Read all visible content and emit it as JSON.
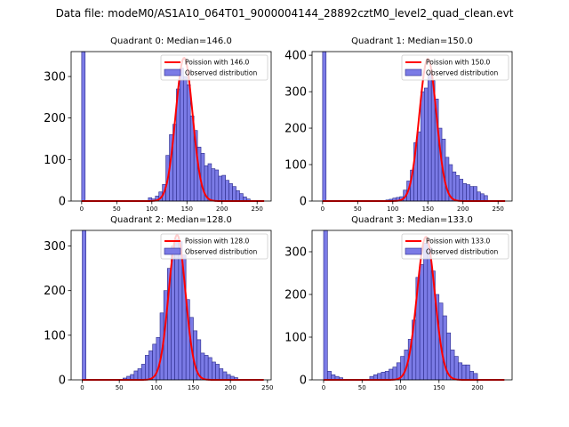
{
  "figure_title": "Data file: modeM0/AS1A10_064T01_9000004144_28892cztM0_level2_quad_clean.evt",
  "colors": {
    "bars_fill": "#7b7be6",
    "bars_edge": "#2a2a8a",
    "poisson_line": "#ff0000"
  },
  "chart_data": [
    {
      "type": "bar",
      "title": "Quadrant 0: Median=146.0",
      "median": 146.0,
      "xlim": [
        -15,
        270
      ],
      "ylim": [
        0,
        360
      ],
      "xticks": [
        0,
        50,
        100,
        150,
        200,
        250
      ],
      "yticks": [
        0,
        100,
        200,
        300
      ],
      "bin_width": 5,
      "legend": [
        "Poission with 146.0",
        "Observed distribution"
      ],
      "poisson_peak": 345,
      "bins": [
        [
          0,
          5,
          360
        ],
        [
          95,
          100,
          8
        ],
        [
          100,
          105,
          5
        ],
        [
          105,
          110,
          12
        ],
        [
          110,
          115,
          22
        ],
        [
          115,
          120,
          40
        ],
        [
          120,
          125,
          110
        ],
        [
          125,
          130,
          160
        ],
        [
          130,
          135,
          185
        ],
        [
          135,
          140,
          270
        ],
        [
          140,
          145,
          320
        ],
        [
          145,
          150,
          300
        ],
        [
          150,
          155,
          280
        ],
        [
          155,
          160,
          205
        ],
        [
          160,
          165,
          170
        ],
        [
          165,
          170,
          130
        ],
        [
          170,
          175,
          115
        ],
        [
          175,
          180,
          85
        ],
        [
          180,
          185,
          90
        ],
        [
          185,
          190,
          78
        ],
        [
          190,
          195,
          75
        ],
        [
          195,
          200,
          60
        ],
        [
          200,
          205,
          62
        ],
        [
          205,
          210,
          50
        ],
        [
          210,
          215,
          42
        ],
        [
          215,
          220,
          35
        ],
        [
          220,
          225,
          25
        ],
        [
          225,
          230,
          18
        ],
        [
          230,
          235,
          10
        ],
        [
          235,
          240,
          5
        ]
      ]
    },
    {
      "type": "bar",
      "title": "Quadrant 1: Median=150.0",
      "median": 150.0,
      "xlim": [
        -15,
        270
      ],
      "ylim": [
        0,
        410
      ],
      "xticks": [
        0,
        50,
        100,
        150,
        200,
        250
      ],
      "yticks": [
        0,
        100,
        200,
        300,
        400
      ],
      "bin_width": 5,
      "legend": [
        "Poission with 150.0",
        "Observed distribution"
      ],
      "poisson_peak": 390,
      "bins": [
        [
          0,
          5,
          410
        ],
        [
          90,
          95,
          3
        ],
        [
          95,
          100,
          5
        ],
        [
          100,
          105,
          8
        ],
        [
          105,
          110,
          10
        ],
        [
          110,
          115,
          12
        ],
        [
          115,
          120,
          30
        ],
        [
          120,
          125,
          55
        ],
        [
          125,
          130,
          85
        ],
        [
          130,
          135,
          160
        ],
        [
          135,
          140,
          190
        ],
        [
          140,
          145,
          300
        ],
        [
          145,
          150,
          310
        ],
        [
          150,
          155,
          350
        ],
        [
          155,
          160,
          330
        ],
        [
          160,
          165,
          280
        ],
        [
          165,
          170,
          200
        ],
        [
          170,
          175,
          170
        ],
        [
          175,
          180,
          120
        ],
        [
          180,
          185,
          100
        ],
        [
          185,
          190,
          80
        ],
        [
          190,
          195,
          70
        ],
        [
          195,
          200,
          60
        ],
        [
          200,
          205,
          48
        ],
        [
          205,
          210,
          45
        ],
        [
          210,
          215,
          40
        ],
        [
          215,
          220,
          40
        ],
        [
          220,
          225,
          25
        ],
        [
          225,
          230,
          20
        ],
        [
          230,
          235,
          15
        ]
      ]
    },
    {
      "type": "bar",
      "title": "Quadrant 2: Median=128.0",
      "median": 128.0,
      "xlim": [
        -15,
        255
      ],
      "ylim": [
        0,
        335
      ],
      "xticks": [
        0,
        50,
        100,
        150,
        200,
        250
      ],
      "yticks": [
        0,
        100,
        200,
        300
      ],
      "bin_width": 5,
      "legend": [
        "Poission with 128.0",
        "Observed distribution"
      ],
      "poisson_peak": 325,
      "bins": [
        [
          0,
          5,
          335
        ],
        [
          55,
          60,
          4
        ],
        [
          60,
          65,
          8
        ],
        [
          65,
          70,
          12
        ],
        [
          70,
          75,
          20
        ],
        [
          75,
          80,
          25
        ],
        [
          80,
          85,
          35
        ],
        [
          85,
          90,
          55
        ],
        [
          90,
          95,
          65
        ],
        [
          95,
          100,
          80
        ],
        [
          100,
          105,
          95
        ],
        [
          105,
          110,
          150
        ],
        [
          110,
          115,
          200
        ],
        [
          115,
          120,
          250
        ],
        [
          120,
          125,
          300
        ],
        [
          125,
          130,
          315
        ],
        [
          130,
          135,
          310
        ],
        [
          135,
          140,
          280
        ],
        [
          140,
          145,
          180
        ],
        [
          145,
          150,
          140
        ],
        [
          150,
          155,
          110
        ],
        [
          155,
          160,
          90
        ],
        [
          160,
          165,
          60
        ],
        [
          165,
          170,
          55
        ],
        [
          170,
          175,
          50
        ],
        [
          175,
          180,
          40
        ],
        [
          180,
          185,
          35
        ],
        [
          185,
          190,
          25
        ],
        [
          190,
          195,
          18
        ],
        [
          195,
          200,
          12
        ],
        [
          200,
          205,
          8
        ],
        [
          205,
          210,
          5
        ]
      ]
    },
    {
      "type": "bar",
      "title": "Quadrant 3: Median=133.0",
      "median": 133.0,
      "xlim": [
        -15,
        245
      ],
      "ylim": [
        0,
        350
      ],
      "xticks": [
        0,
        50,
        100,
        150,
        200
      ],
      "yticks": [
        0,
        100,
        200,
        300
      ],
      "bin_width": 5,
      "legend": [
        "Poission with 133.0",
        "Observed distribution"
      ],
      "poisson_peak": 335,
      "bins": [
        [
          0,
          5,
          350
        ],
        [
          5,
          10,
          20
        ],
        [
          10,
          15,
          12
        ],
        [
          15,
          20,
          8
        ],
        [
          20,
          25,
          5
        ],
        [
          60,
          65,
          8
        ],
        [
          65,
          70,
          12
        ],
        [
          70,
          75,
          15
        ],
        [
          75,
          80,
          18
        ],
        [
          80,
          85,
          20
        ],
        [
          85,
          90,
          25
        ],
        [
          90,
          95,
          30
        ],
        [
          95,
          100,
          40
        ],
        [
          100,
          105,
          55
        ],
        [
          105,
          110,
          70
        ],
        [
          110,
          115,
          95
        ],
        [
          115,
          120,
          140
        ],
        [
          120,
          125,
          240
        ],
        [
          125,
          130,
          270
        ],
        [
          130,
          135,
          320
        ],
        [
          135,
          140,
          310
        ],
        [
          140,
          145,
          255
        ],
        [
          145,
          150,
          200
        ],
        [
          150,
          155,
          180
        ],
        [
          155,
          160,
          150
        ],
        [
          160,
          165,
          110
        ],
        [
          165,
          170,
          70
        ],
        [
          170,
          175,
          55
        ],
        [
          175,
          180,
          40
        ],
        [
          180,
          185,
          35
        ],
        [
          185,
          190,
          35
        ],
        [
          190,
          195,
          20
        ],
        [
          195,
          200,
          15
        ]
      ]
    }
  ]
}
